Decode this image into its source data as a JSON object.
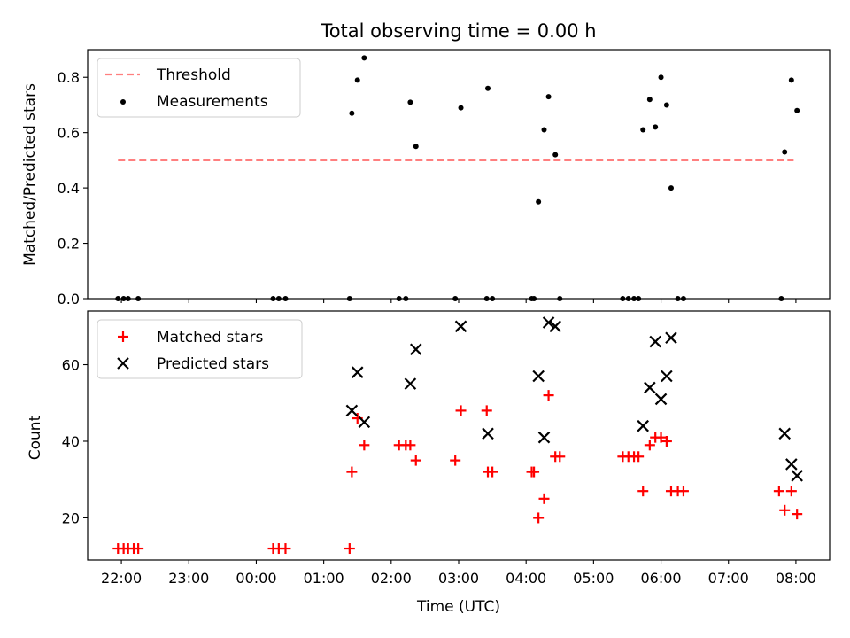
{
  "title": "Total observing time = 0.00 h",
  "chart_data": [
    {
      "type": "scatter",
      "panel": "top",
      "title": "Total observing time = 0.00 h",
      "xlabel": "",
      "ylabel": "Matched/Predicted stars",
      "xlim": [
        "21:30",
        "08:30"
      ],
      "ylim": [
        0,
        0.9
      ],
      "yticks": [
        0.0,
        0.2,
        0.4,
        0.6,
        0.8
      ],
      "yticklabels": [
        "0.0",
        "0.2",
        "0.4",
        "0.6",
        "0.8"
      ],
      "legend": {
        "placement": "top-left",
        "entries": [
          "Threshold",
          "Measurements"
        ]
      },
      "threshold": {
        "name": "Threshold",
        "y": 0.5,
        "x_start": "21:57",
        "x_end": "07:58",
        "color": "#ff7f7f",
        "style": "dashed"
      },
      "series": [
        {
          "name": "Measurements",
          "color": "#000000",
          "marker": "dot",
          "points": [
            {
              "x": "21:57",
              "y": 0
            },
            {
              "x": "22:02",
              "y": 0
            },
            {
              "x": "22:06",
              "y": 0
            },
            {
              "x": "22:15",
              "y": 0
            },
            {
              "x": "00:15",
              "y": 0
            },
            {
              "x": "00:20",
              "y": 0
            },
            {
              "x": "00:26",
              "y": 0
            },
            {
              "x": "01:23",
              "y": 0
            },
            {
              "x": "01:25",
              "y": 0.67
            },
            {
              "x": "01:30",
              "y": 0.79
            },
            {
              "x": "01:36",
              "y": 0.87
            },
            {
              "x": "02:07",
              "y": 0
            },
            {
              "x": "02:13",
              "y": 0
            },
            {
              "x": "02:17",
              "y": 0.71
            },
            {
              "x": "02:22",
              "y": 0.55
            },
            {
              "x": "02:57",
              "y": 0
            },
            {
              "x": "03:02",
              "y": 0.69
            },
            {
              "x": "03:25",
              "y": 0
            },
            {
              "x": "03:26",
              "y": 0.76
            },
            {
              "x": "03:30",
              "y": 0
            },
            {
              "x": "04:05",
              "y": 0
            },
            {
              "x": "04:07",
              "y": 0
            },
            {
              "x": "04:11",
              "y": 0.35
            },
            {
              "x": "04:16",
              "y": 0.61
            },
            {
              "x": "04:20",
              "y": 0.73
            },
            {
              "x": "04:26",
              "y": 0.52
            },
            {
              "x": "04:30",
              "y": 0
            },
            {
              "x": "05:26",
              "y": 0
            },
            {
              "x": "05:31",
              "y": 0
            },
            {
              "x": "05:36",
              "y": 0
            },
            {
              "x": "05:40",
              "y": 0
            },
            {
              "x": "05:44",
              "y": 0.61
            },
            {
              "x": "05:50",
              "y": 0.72
            },
            {
              "x": "05:55",
              "y": 0.62
            },
            {
              "x": "06:00",
              "y": 0.8
            },
            {
              "x": "06:05",
              "y": 0.7
            },
            {
              "x": "06:09",
              "y": 0.4
            },
            {
              "x": "06:15",
              "y": 0
            },
            {
              "x": "06:20",
              "y": 0
            },
            {
              "x": "07:47",
              "y": 0
            },
            {
              "x": "07:50",
              "y": 0.53
            },
            {
              "x": "07:56",
              "y": 0.79
            },
            {
              "x": "08:01",
              "y": 0.68
            }
          ]
        }
      ]
    },
    {
      "type": "scatter",
      "panel": "bottom",
      "xlabel": "Time (UTC)",
      "ylabel": "Count",
      "xlim": [
        "21:30",
        "08:30"
      ],
      "ylim": [
        9,
        74
      ],
      "xticks": [
        "22:00",
        "23:00",
        "00:00",
        "01:00",
        "02:00",
        "03:00",
        "04:00",
        "05:00",
        "06:00",
        "07:00",
        "08:00"
      ],
      "yticks": [
        20,
        40,
        60
      ],
      "yticklabels": [
        "20",
        "40",
        "60"
      ],
      "legend": {
        "placement": "top-left",
        "entries": [
          "Matched stars",
          "Predicted stars"
        ]
      },
      "series": [
        {
          "name": "Matched stars",
          "color": "#ff0000",
          "marker": "plus",
          "points": [
            {
              "x": "21:57",
              "y": 12
            },
            {
              "x": "22:02",
              "y": 12
            },
            {
              "x": "22:06",
              "y": 12
            },
            {
              "x": "22:11",
              "y": 12
            },
            {
              "x": "22:15",
              "y": 12
            },
            {
              "x": "00:15",
              "y": 12
            },
            {
              "x": "00:20",
              "y": 12
            },
            {
              "x": "00:26",
              "y": 12
            },
            {
              "x": "01:23",
              "y": 12
            },
            {
              "x": "01:25",
              "y": 32
            },
            {
              "x": "01:30",
              "y": 46
            },
            {
              "x": "01:36",
              "y": 39
            },
            {
              "x": "02:07",
              "y": 39
            },
            {
              "x": "02:13",
              "y": 39
            },
            {
              "x": "02:17",
              "y": 39
            },
            {
              "x": "02:22",
              "y": 35
            },
            {
              "x": "02:57",
              "y": 35
            },
            {
              "x": "03:02",
              "y": 48
            },
            {
              "x": "03:25",
              "y": 48
            },
            {
              "x": "03:26",
              "y": 32
            },
            {
              "x": "03:30",
              "y": 32
            },
            {
              "x": "04:05",
              "y": 32
            },
            {
              "x": "04:07",
              "y": 32
            },
            {
              "x": "04:11",
              "y": 20
            },
            {
              "x": "04:16",
              "y": 25
            },
            {
              "x": "04:20",
              "y": 52
            },
            {
              "x": "04:26",
              "y": 36
            },
            {
              "x": "04:30",
              "y": 36
            },
            {
              "x": "05:26",
              "y": 36
            },
            {
              "x": "05:31",
              "y": 36
            },
            {
              "x": "05:36",
              "y": 36
            },
            {
              "x": "05:40",
              "y": 36
            },
            {
              "x": "05:44",
              "y": 27
            },
            {
              "x": "05:50",
              "y": 39
            },
            {
              "x": "05:55",
              "y": 41
            },
            {
              "x": "06:00",
              "y": 41
            },
            {
              "x": "06:05",
              "y": 40
            },
            {
              "x": "06:09",
              "y": 27
            },
            {
              "x": "06:15",
              "y": 27
            },
            {
              "x": "06:20",
              "y": 27
            },
            {
              "x": "07:45",
              "y": 27
            },
            {
              "x": "07:50",
              "y": 22
            },
            {
              "x": "07:56",
              "y": 27
            },
            {
              "x": "08:01",
              "y": 21
            }
          ]
        },
        {
          "name": "Predicted stars",
          "color": "#000000",
          "marker": "x",
          "points": [
            {
              "x": "01:25",
              "y": 48
            },
            {
              "x": "01:30",
              "y": 58
            },
            {
              "x": "01:36",
              "y": 45
            },
            {
              "x": "02:17",
              "y": 55
            },
            {
              "x": "02:22",
              "y": 64
            },
            {
              "x": "03:02",
              "y": 70
            },
            {
              "x": "03:26",
              "y": 42
            },
            {
              "x": "04:11",
              "y": 57
            },
            {
              "x": "04:16",
              "y": 41
            },
            {
              "x": "04:20",
              "y": 71
            },
            {
              "x": "04:26",
              "y": 70
            },
            {
              "x": "05:44",
              "y": 44
            },
            {
              "x": "05:50",
              "y": 54
            },
            {
              "x": "05:55",
              "y": 66
            },
            {
              "x": "06:00",
              "y": 51
            },
            {
              "x": "06:05",
              "y": 57
            },
            {
              "x": "06:09",
              "y": 67
            },
            {
              "x": "07:50",
              "y": 42
            },
            {
              "x": "07:56",
              "y": 34
            },
            {
              "x": "08:01",
              "y": 31
            }
          ]
        }
      ]
    }
  ]
}
